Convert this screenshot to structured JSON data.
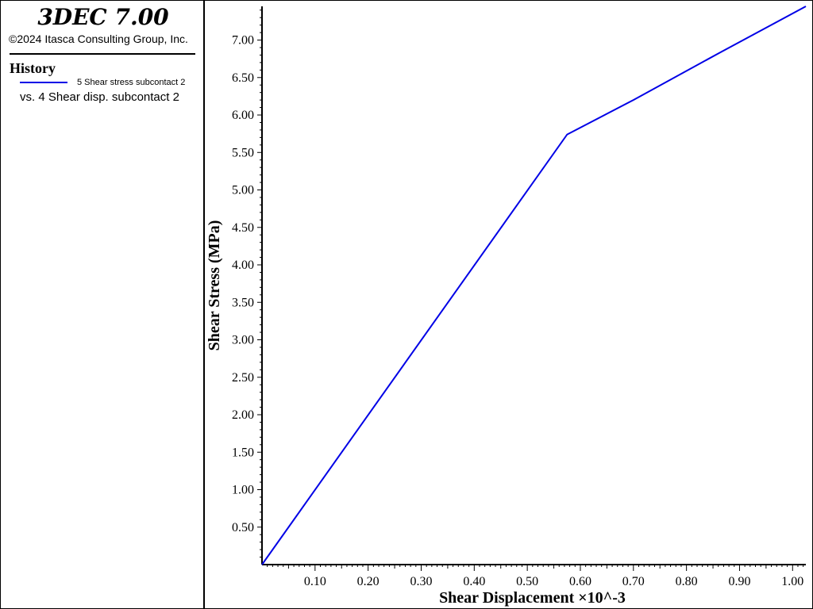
{
  "header": {
    "app_title": "3DEC 7.00",
    "copyright": "©2024 Itasca Consulting Group, Inc."
  },
  "legend": {
    "heading": "History",
    "series_label": "5 Shear stress subcontact 2",
    "vs_label": "vs. 4 Shear disp. subcontact 2",
    "line_color": "#0000e6"
  },
  "chart_data": {
    "type": "line",
    "xlabel": "Shear Displacement ×10^-3",
    "ylabel": "Shear Stress (MPa)",
    "xlim": [
      0,
      1.025
    ],
    "ylim": [
      0,
      7.45
    ],
    "xticks": [
      0.1,
      0.2,
      0.3,
      0.4,
      0.5,
      0.6,
      0.7,
      0.8,
      0.9,
      1.0
    ],
    "xtick_labels": [
      "0.10",
      "0.20",
      "0.30",
      "0.40",
      "0.50",
      "0.60",
      "0.70",
      "0.80",
      "0.90",
      "1.00"
    ],
    "yticks": [
      0.5,
      1.0,
      1.5,
      2.0,
      2.5,
      3.0,
      3.5,
      4.0,
      4.5,
      5.0,
      5.5,
      6.0,
      6.5,
      7.0
    ],
    "ytick_labels": [
      "0.50",
      "1.00",
      "1.50",
      "2.00",
      "2.50",
      "3.00",
      "3.50",
      "4.00",
      "4.50",
      "5.00",
      "5.50",
      "6.00",
      "6.50",
      "7.00"
    ],
    "grid": false,
    "series": [
      {
        "name": "5 Shear stress subcontact 2",
        "color": "#0000e6",
        "x": [
          0,
          0.575,
          0.7,
          0.865,
          1.025
        ],
        "y": [
          0,
          5.74,
          6.2,
          6.84,
          7.45
        ]
      }
    ]
  }
}
